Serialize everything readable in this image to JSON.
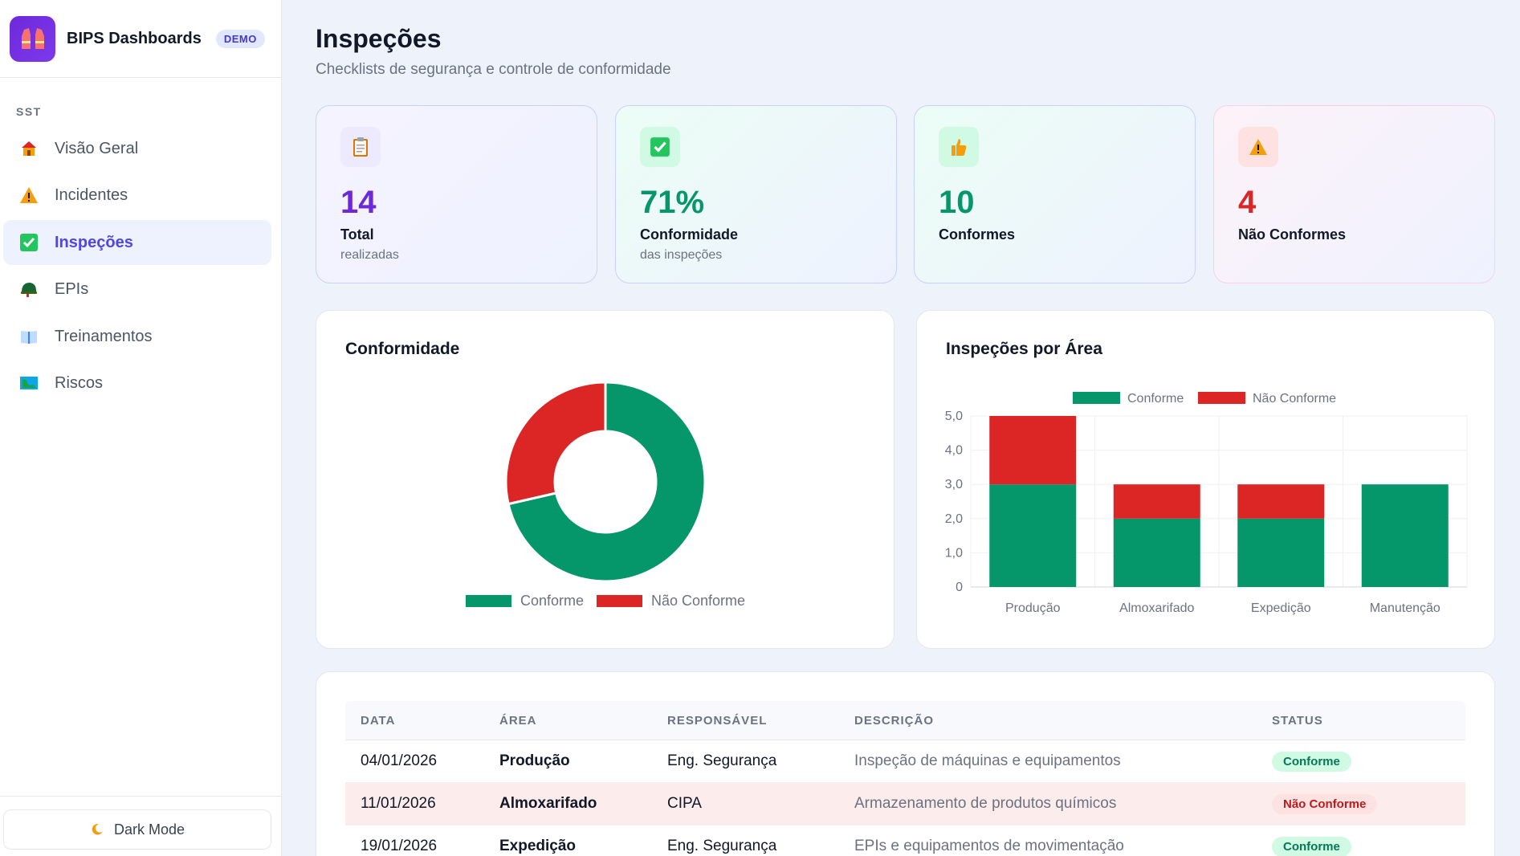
{
  "brand": {
    "title": "BIPS Dashboards",
    "badge": "DEMO"
  },
  "sidebar": {
    "section": "SST",
    "items": [
      {
        "label": "Visão Geral",
        "icon": "house-icon"
      },
      {
        "label": "Incidentes",
        "icon": "warning-icon"
      },
      {
        "label": "Inspeções",
        "icon": "checkbox-icon",
        "active": true
      },
      {
        "label": "EPIs",
        "icon": "helmet-icon"
      },
      {
        "label": "Treinamentos",
        "icon": "book-icon"
      },
      {
        "label": "Riscos",
        "icon": "map-icon"
      }
    ],
    "dark_mode_label": "Dark Mode"
  },
  "header": {
    "title": "Inspeções",
    "subtitle": "Checklists de segurança e controle de conformidade"
  },
  "kpis": [
    {
      "value": "14",
      "label": "Total",
      "sub": "realizadas",
      "color": "#6d28d9",
      "icon": "clipboard-icon"
    },
    {
      "value": "71%",
      "label": "Conformidade",
      "sub": "das inspeções",
      "color": "#059669",
      "icon": "check-icon"
    },
    {
      "value": "10",
      "label": "Conformes",
      "sub": "",
      "color": "#059669",
      "icon": "thumbs-up-icon"
    },
    {
      "value": "4",
      "label": "Não Conformes",
      "sub": "",
      "color": "#dc2626",
      "icon": "warning-icon"
    }
  ],
  "colors": {
    "conforme": "#059669",
    "nao_conforme": "#dc2626",
    "accent": "#4f46e5"
  },
  "chart_data": [
    {
      "type": "pie",
      "title": "Conformidade",
      "categories": [
        "Conforme",
        "Não Conforme"
      ],
      "values": [
        10,
        4
      ],
      "legend": "bottom",
      "donut": true
    },
    {
      "type": "bar",
      "stacked": true,
      "title": "Inspeções por Área",
      "categories": [
        "Produção",
        "Almoxarifado",
        "Expedição",
        "Manutenção"
      ],
      "series": [
        {
          "name": "Conforme",
          "values": [
            3,
            2,
            2,
            3
          ]
        },
        {
          "name": "Não Conforme",
          "values": [
            2,
            1,
            1,
            0
          ]
        }
      ],
      "ylim": [
        0,
        5
      ],
      "yticks": [
        "0",
        "1,0",
        "2,0",
        "3,0",
        "4,0",
        "5,0"
      ],
      "legend": "top",
      "grid": true
    }
  ],
  "table": {
    "headers": [
      "DATA",
      "ÁREA",
      "RESPONSÁVEL",
      "DESCRIÇÃO",
      "STATUS"
    ],
    "rows": [
      {
        "data": "04/01/2026",
        "area": "Produção",
        "responsavel": "Eng. Segurança",
        "descricao": "Inspeção de máquinas e equipamentos",
        "status": "Conforme"
      },
      {
        "data": "11/01/2026",
        "area": "Almoxarifado",
        "responsavel": "CIPA",
        "descricao": "Armazenamento de produtos químicos",
        "status": "Não Conforme"
      },
      {
        "data": "19/01/2026",
        "area": "Expedição",
        "responsavel": "Eng. Segurança",
        "descricao": "EPIs e equipamentos de movimentação",
        "status": "Conforme"
      }
    ]
  }
}
